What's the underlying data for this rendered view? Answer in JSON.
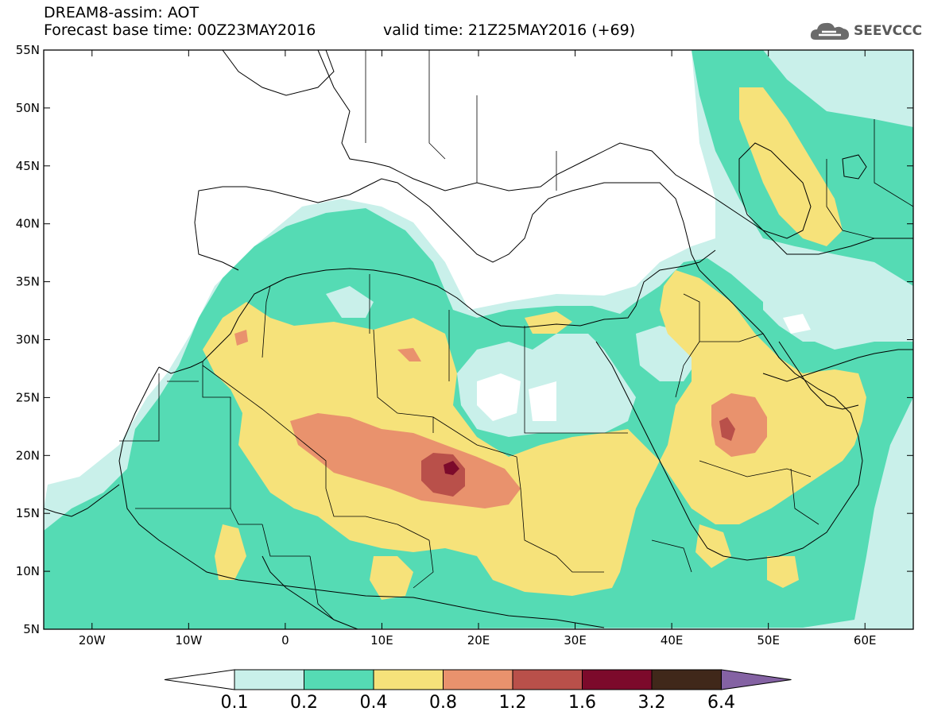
{
  "header": {
    "title": "DREAM8-assim: AOT",
    "forecast_base": "Forecast base time: 00Z23MAY2016",
    "valid_time": "valid time: 21Z25MAY2016 (+69)",
    "logo_text": "SEEVCCC",
    "logo_icon": "cloud-icon"
  },
  "map": {
    "lon_range": [
      -25,
      65
    ],
    "lat_range": [
      5,
      55
    ],
    "lat_ticks": [
      "55N",
      "50N",
      "45N",
      "40N",
      "35N",
      "30N",
      "25N",
      "20N",
      "15N",
      "10N",
      "5N"
    ],
    "lon_ticks": [
      "20W",
      "10W",
      "0",
      "10E",
      "20E",
      "30E",
      "40E",
      "50E",
      "60E"
    ]
  },
  "colorbar": {
    "labels": [
      "0.1",
      "0.2",
      "0.4",
      "0.8",
      "1.2",
      "1.6",
      "3.2",
      "6.4"
    ],
    "colors": [
      "#ffffff",
      "#c9f0ea",
      "#55dbb4",
      "#f6e27a",
      "#e9926d",
      "#b9504a",
      "#7c0a2b",
      "#40281a",
      "#8462a3"
    ]
  }
}
